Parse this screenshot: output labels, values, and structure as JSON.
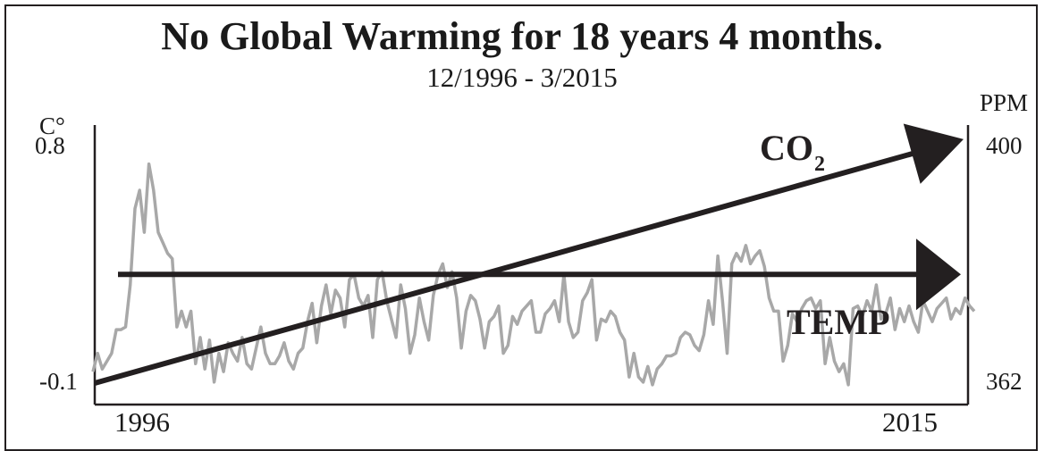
{
  "chart_data": {
    "type": "line",
    "title": "No Global Warming for 18 years 4 months.",
    "subtitle": "12/1996 - 3/2015",
    "left_axis": {
      "unit": "C°",
      "tick_labels": [
        "0.8",
        "-0.1"
      ],
      "range": [
        -0.1,
        0.8
      ]
    },
    "right_axis": {
      "unit": "PPM",
      "tick_labels": [
        "400",
        "362"
      ],
      "range": [
        362,
        400
      ]
    },
    "x_tick_labels": [
      "1996",
      "2015"
    ],
    "x_range": [
      1996,
      2015
    ],
    "grid": false,
    "series": [
      {
        "color": "#a8a8a8",
        "values": [
          -0.07,
          0.0,
          -0.06,
          -0.03,
          0.0,
          0.09,
          0.09,
          0.1,
          0.26,
          0.55,
          0.62,
          0.46,
          0.72,
          0.62,
          0.46,
          0.42,
          0.38,
          0.36,
          0.1,
          0.16,
          0.1,
          0.16,
          -0.04,
          0.06,
          -0.06,
          0.05,
          -0.11,
          0.0,
          -0.07,
          0.04,
          0.0,
          -0.03,
          0.06,
          -0.04,
          -0.06,
          0.02,
          0.1,
          0.0,
          -0.04,
          -0.04,
          -0.01,
          0.04,
          -0.03,
          -0.06,
          0.0,
          0.02,
          0.12,
          0.19,
          0.04,
          0.18,
          0.26,
          0.15,
          0.24,
          0.21,
          0.1,
          0.28,
          0.3,
          0.21,
          0.18,
          0.22,
          0.06,
          0.28,
          0.31,
          0.2,
          0.13,
          0.06,
          0.26,
          0.17,
          0.0,
          0.07,
          0.21,
          0.12,
          0.05,
          0.22,
          0.3,
          0.34,
          0.25,
          0.31,
          0.21,
          0.02,
          0.16,
          0.22,
          0.2,
          0.13,
          0.02,
          0.12,
          0.14,
          0.18,
          0.0,
          0.03,
          0.14,
          0.11,
          0.16,
          0.18,
          0.2,
          0.08,
          0.08,
          0.15,
          0.17,
          0.2,
          0.12,
          0.3,
          0.12,
          0.06,
          0.08,
          0.2,
          0.23,
          0.28,
          0.05,
          0.13,
          0.12,
          0.16,
          0.14,
          0.08,
          0.05,
          -0.09,
          0.0,
          -0.09,
          -0.11,
          -0.05,
          -0.12,
          -0.06,
          -0.04,
          -0.01,
          -0.01,
          0.0,
          0.06,
          0.08,
          0.07,
          0.03,
          0.01,
          0.07,
          0.2,
          0.11,
          0.37,
          0.2,
          0.0,
          0.34,
          0.38,
          0.35,
          0.41,
          0.34,
          0.37,
          0.39,
          0.33,
          0.21,
          0.16,
          0.16,
          -0.03,
          0.03,
          0.15,
          0.12,
          0.17,
          0.2,
          0.21,
          0.17,
          0.2,
          -0.04,
          0.06,
          -0.03,
          -0.07,
          -0.04,
          -0.12,
          0.17,
          0.18,
          0.14,
          0.2,
          0.16,
          0.26,
          0.13,
          0.15,
          0.21,
          0.09,
          0.17,
          0.12,
          0.18,
          0.12,
          0.08,
          0.2,
          0.16,
          0.12,
          0.17,
          0.19,
          0.21,
          0.13,
          0.17,
          0.15,
          0.21,
          0.18,
          0.16
        ]
      }
    ],
    "overlays": [
      {
        "label": "TEMP",
        "kind": "arrow",
        "from": [
          1996,
          0.3
        ],
        "to": [
          2015,
          0.3
        ]
      },
      {
        "label": "CO",
        "subscript": "2",
        "kind": "arrow",
        "from": [
          1996,
          362
        ],
        "to": [
          2015,
          397
        ]
      }
    ],
    "colors": {
      "series": "#a8a8a8",
      "arrows": "#231f20",
      "frame": "#231f20"
    }
  }
}
